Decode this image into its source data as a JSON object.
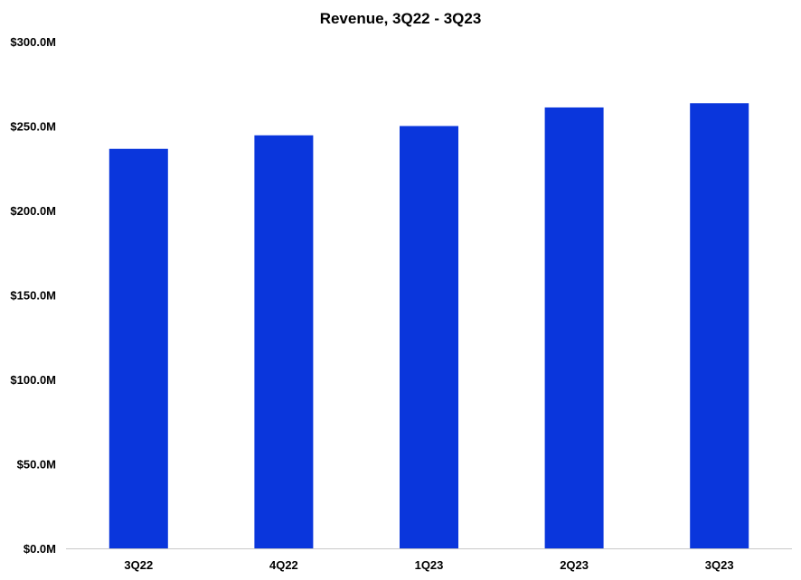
{
  "chart_data": {
    "type": "bar",
    "title": "Revenue, 3Q22 - 3Q23",
    "xlabel": "",
    "ylabel": "",
    "categories": [
      "3Q22",
      "4Q22",
      "1Q23",
      "2Q23",
      "3Q23"
    ],
    "values": [
      236.5,
      244.5,
      250.0,
      261.0,
      263.5
    ],
    "unit": "millions USD",
    "ylim": [
      0,
      300
    ],
    "yticks": [
      0,
      50,
      100,
      150,
      200,
      250,
      300
    ],
    "ytick_labels": [
      "$0.0M",
      "$50.0M",
      "$100.0M",
      "$150.0M",
      "$200.0M",
      "$250.0M",
      "$300.0M"
    ],
    "grid": false,
    "legend": "none",
    "bar_color": "#0A36DC",
    "axis_color": "#C8C8C8"
  }
}
